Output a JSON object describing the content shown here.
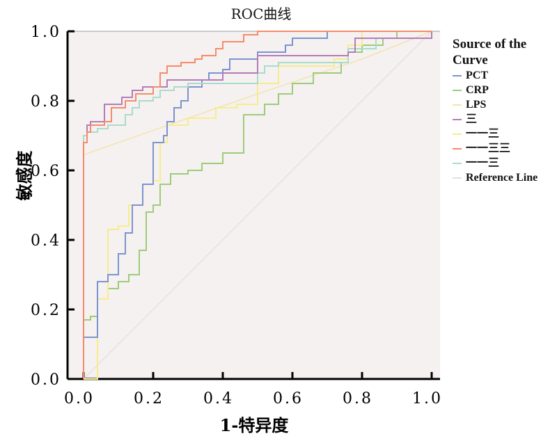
{
  "chart_data": {
    "type": "line",
    "title": "ROC曲线",
    "xlabel": "1-特异度",
    "ylabel": "敏感度",
    "xlim": [
      0,
      1
    ],
    "ylim": [
      0,
      1
    ],
    "xticks": [
      "0.0",
      "0.2",
      "0.4",
      "0.6",
      "0.8",
      "1.0"
    ],
    "yticks": [
      "0.0",
      "0.2",
      "0.4",
      "0.6",
      "0.8",
      "1.0"
    ],
    "legend_title": "Source of the Curve",
    "legend_position": "right",
    "series": [
      {
        "name": "PCT",
        "color": "#7b93cf",
        "step": true,
        "points": [
          [
            0,
            0
          ],
          [
            0,
            0.12
          ],
          [
            0.02,
            0.12
          ],
          [
            0.04,
            0.28
          ],
          [
            0.07,
            0.3
          ],
          [
            0.1,
            0.36
          ],
          [
            0.12,
            0.42
          ],
          [
            0.14,
            0.5
          ],
          [
            0.17,
            0.56
          ],
          [
            0.2,
            0.68
          ],
          [
            0.23,
            0.7
          ],
          [
            0.24,
            0.74
          ],
          [
            0.26,
            0.78
          ],
          [
            0.28,
            0.8
          ],
          [
            0.3,
            0.84
          ],
          [
            0.34,
            0.86
          ],
          [
            0.36,
            0.88
          ],
          [
            0.4,
            0.89
          ],
          [
            0.42,
            0.92
          ],
          [
            0.5,
            0.94
          ],
          [
            0.58,
            0.96
          ],
          [
            0.6,
            0.98
          ],
          [
            0.7,
            1.0
          ],
          [
            1,
            1
          ]
        ]
      },
      {
        "name": "CRP",
        "color": "#9ccc7a",
        "step": true,
        "points": [
          [
            0,
            0
          ],
          [
            0,
            0.17
          ],
          [
            0.02,
            0.18
          ],
          [
            0.04,
            0.23
          ],
          [
            0.07,
            0.26
          ],
          [
            0.1,
            0.28
          ],
          [
            0.13,
            0.3
          ],
          [
            0.16,
            0.37
          ],
          [
            0.18,
            0.48
          ],
          [
            0.2,
            0.5
          ],
          [
            0.22,
            0.56
          ],
          [
            0.25,
            0.59
          ],
          [
            0.3,
            0.6
          ],
          [
            0.34,
            0.62
          ],
          [
            0.4,
            0.65
          ],
          [
            0.46,
            0.76
          ],
          [
            0.52,
            0.79
          ],
          [
            0.56,
            0.82
          ],
          [
            0.6,
            0.85
          ],
          [
            0.66,
            0.88
          ],
          [
            0.74,
            0.91
          ],
          [
            0.76,
            0.94
          ],
          [
            0.8,
            0.96
          ],
          [
            0.86,
            0.98
          ],
          [
            0.9,
            1.0
          ],
          [
            1,
            1
          ]
        ]
      },
      {
        "name": "LPS",
        "color": "#f3e3b0",
        "step": false,
        "points": [
          [
            0,
            0.645
          ],
          [
            0.5,
            0.82
          ],
          [
            0.8,
            0.92
          ],
          [
            1,
            1
          ]
        ]
      },
      {
        "name": "三",
        "color": "#b47cb8",
        "step": true,
        "points": [
          [
            0,
            0
          ],
          [
            0,
            0.68
          ],
          [
            0.01,
            0.73
          ],
          [
            0.02,
            0.74
          ],
          [
            0.06,
            0.79
          ],
          [
            0.11,
            0.81
          ],
          [
            0.14,
            0.83
          ],
          [
            0.17,
            0.84
          ],
          [
            0.24,
            0.86
          ],
          [
            0.4,
            0.88
          ],
          [
            0.5,
            0.93
          ],
          [
            0.76,
            0.94
          ],
          [
            0.78,
            0.98
          ],
          [
            1,
            1
          ]
        ]
      },
      {
        "name": "一一三",
        "color": "#f7ec8a",
        "step": true,
        "points": [
          [
            0,
            0
          ],
          [
            0.04,
            0.23
          ],
          [
            0.07,
            0.43
          ],
          [
            0.1,
            0.44
          ],
          [
            0.13,
            0.5
          ],
          [
            0.17,
            0.56
          ],
          [
            0.2,
            0.57
          ],
          [
            0.22,
            0.68
          ],
          [
            0.24,
            0.73
          ],
          [
            0.3,
            0.75
          ],
          [
            0.38,
            0.78
          ],
          [
            0.44,
            0.79
          ],
          [
            0.5,
            0.85
          ],
          [
            0.56,
            0.9
          ],
          [
            0.72,
            0.92
          ],
          [
            0.76,
            0.96
          ],
          [
            0.8,
            1.0
          ],
          [
            1,
            1
          ]
        ]
      },
      {
        "name": "一一三三",
        "color": "#f68a6a",
        "step": true,
        "points": [
          [
            0,
            0
          ],
          [
            0,
            0.68
          ],
          [
            0.01,
            0.71
          ],
          [
            0.02,
            0.73
          ],
          [
            0.06,
            0.74
          ],
          [
            0.08,
            0.78
          ],
          [
            0.12,
            0.8
          ],
          [
            0.15,
            0.82
          ],
          [
            0.2,
            0.84
          ],
          [
            0.22,
            0.88
          ],
          [
            0.24,
            0.9
          ],
          [
            0.28,
            0.91
          ],
          [
            0.32,
            0.92
          ],
          [
            0.34,
            0.93
          ],
          [
            0.38,
            0.95
          ],
          [
            0.4,
            0.97
          ],
          [
            0.46,
            0.99
          ],
          [
            0.5,
            1.0
          ],
          [
            1,
            1
          ]
        ]
      },
      {
        "name": "一一三",
        "color": "#a9dccb",
        "step": true,
        "points": [
          [
            0,
            0
          ],
          [
            0,
            0.7
          ],
          [
            0.01,
            0.71
          ],
          [
            0.04,
            0.72
          ],
          [
            0.07,
            0.73
          ],
          [
            0.12,
            0.76
          ],
          [
            0.14,
            0.78
          ],
          [
            0.16,
            0.8
          ],
          [
            0.2,
            0.81
          ],
          [
            0.22,
            0.83
          ],
          [
            0.26,
            0.84
          ],
          [
            0.3,
            0.85
          ],
          [
            0.5,
            0.88
          ],
          [
            0.52,
            0.9
          ],
          [
            0.56,
            0.91
          ],
          [
            0.76,
            0.95
          ],
          [
            0.84,
            0.98
          ],
          [
            1,
            1
          ]
        ]
      },
      {
        "name": "Reference Line",
        "color": "#e6e0e0",
        "step": false,
        "points": [
          [
            0,
            0
          ],
          [
            1,
            1
          ]
        ]
      }
    ]
  }
}
